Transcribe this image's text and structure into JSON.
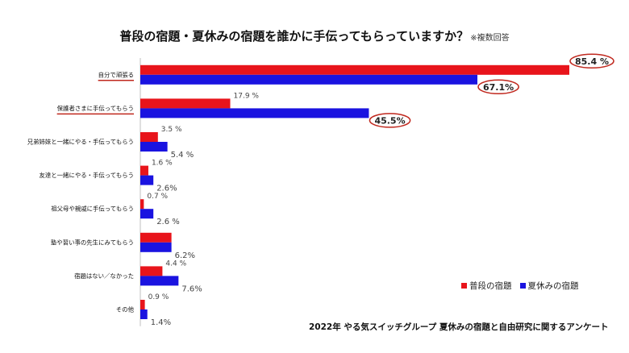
{
  "title": "普段の宿題・夏休みの宿題を誰かに手伝ってもらっていますか？",
  "title_note": "※複数回答",
  "source": "2022年 やる気スイッチグループ 夏休みの宿題と自由研究に関するアンケート",
  "colors": {
    "red": "#e8141b",
    "blue": "#1a13e0",
    "highlight": "#c0281e"
  },
  "chart_data": {
    "type": "bar",
    "orientation": "horizontal",
    "categories": [
      "自分で頑張る",
      "保護者さまに手伝ってもらう",
      "兄弟姉妹と一緒にやる・手伝ってもらう",
      "友達と一緒にやる・手伝ってもらう",
      "祖父母や親戚に手伝ってもらう",
      "塾や習い事の先生にみてもらう",
      "宿題はない／なかった",
      "その他"
    ],
    "series": [
      {
        "name": "普段の宿題",
        "color": "#e8141b",
        "values": [
          85.4,
          17.9,
          3.5,
          1.6,
          0.7,
          6.2,
          4.4,
          0.9
        ],
        "labels": [
          "85.4 %",
          "17.9 %",
          "3.5 %",
          "1.6 %",
          "0.7 %",
          "",
          "4.4 %",
          "0.9 %"
        ]
      },
      {
        "name": "夏休みの宿題",
        "color": "#1a13e0",
        "values": [
          67.1,
          45.5,
          5.4,
          2.6,
          2.6,
          6.2,
          7.6,
          1.4
        ],
        "labels": [
          "67.1%",
          "45.5%",
          "5.4 %",
          "2.6%",
          "2.6 %",
          "6.2%",
          "7.6%",
          "1.4%"
        ]
      }
    ],
    "highlighted_labels": [
      "85.4 %",
      "67.1%",
      "45.5%"
    ],
    "underlined_categories": [
      "自分で頑張る",
      "保護者さまに手伝ってもらう"
    ],
    "xlim": [
      0,
      85.4
    ],
    "legend_position": "bottom-right",
    "grid": false
  }
}
